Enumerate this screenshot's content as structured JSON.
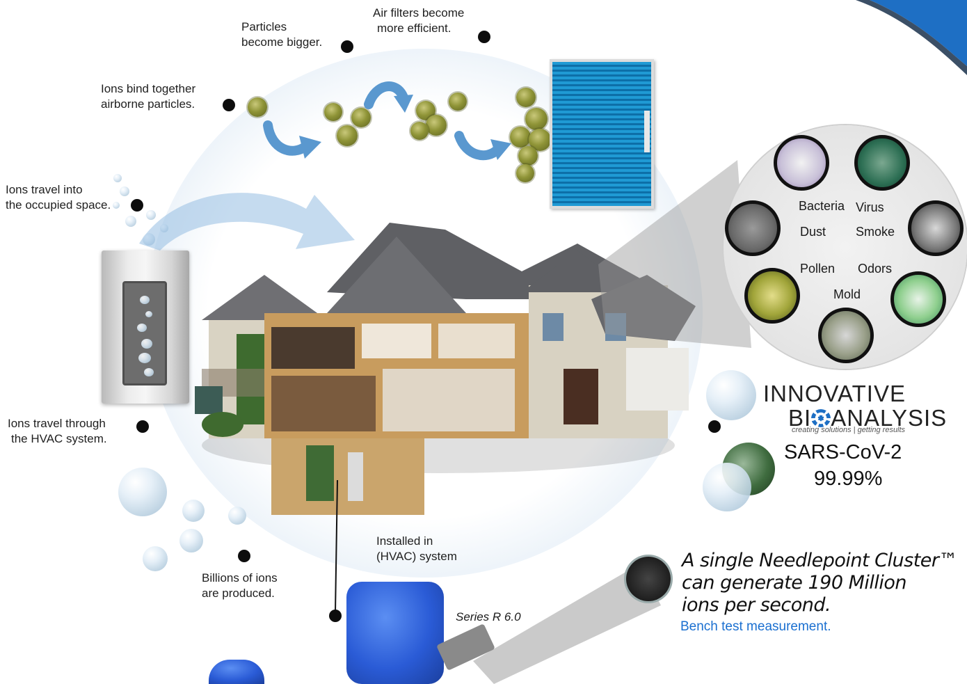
{
  "steps": {
    "particles_bigger": [
      "Particles",
      "become bigger."
    ],
    "filters_efficient": [
      "Air filters become",
      "more efficient."
    ],
    "ions_bind": [
      "Ions bind together",
      "airborne particles."
    ],
    "ions_occupied": [
      "Ions travel into",
      "the occupied space."
    ],
    "ions_hvac": [
      "Ions travel through",
      "the HVAC system."
    ],
    "billions": [
      "Billions of ions",
      "are produced."
    ],
    "installed": [
      "Installed in",
      "(HVAC) system"
    ]
  },
  "contaminants": {
    "bacteria": "Bacteria",
    "virus": "Virus",
    "dust": "Dust",
    "smoke": "Smoke",
    "pollen": "Pollen",
    "odors": "Odors",
    "mold": "Mold"
  },
  "brand": {
    "line1": "INNOVATIVE",
    "line2": "BIOANALYSIS",
    "line2_pre": "BI",
    "line2_post": "ANALYSIS",
    "tagline": "creating solutions | getting results"
  },
  "result": {
    "pathogen": "SARS-CoV-2",
    "reduction": "99.99%"
  },
  "cluster": {
    "line1": "A single Needlepoint Cluster™",
    "line2": "can generate 190 Million",
    "line3": "ions per second.",
    "note": "Bench test measurement."
  },
  "device": {
    "series": "Series R 6.0"
  },
  "colors": {
    "filter_blue": "#1f9ad4",
    "ionizer_blue": "#2a5bd6",
    "note_blue": "#1a6fd0",
    "arrow_blue": "#5a98cf",
    "corner_blue": "#1e6fc4"
  }
}
